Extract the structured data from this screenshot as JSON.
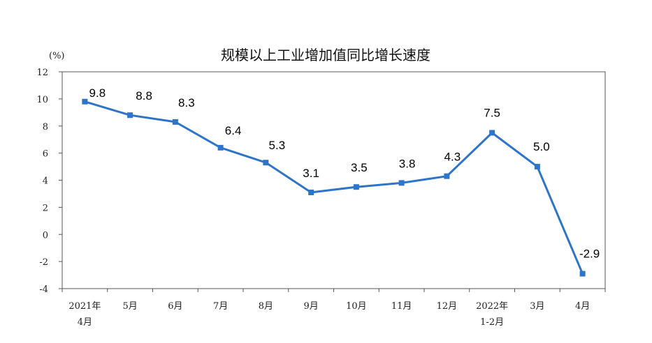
{
  "chart_data": {
    "type": "line",
    "title": "规模以上工业增加值同比增长速度",
    "unit_label": "(%)",
    "ylim": [
      -4,
      12
    ],
    "yticks": [
      "12",
      "10",
      "8",
      "6",
      "4",
      "2",
      "0",
      "-2",
      "-4"
    ],
    "categories": [
      [
        "2021年",
        "4月"
      ],
      [
        "5月"
      ],
      [
        "6月"
      ],
      [
        "7月"
      ],
      [
        "8月"
      ],
      [
        "9月"
      ],
      [
        "10月"
      ],
      [
        "11月"
      ],
      [
        "12月"
      ],
      [
        "2022年",
        "1-2月"
      ],
      [
        "3月"
      ],
      [
        "4月"
      ]
    ],
    "series": [
      {
        "values": [
          9.8,
          8.8,
          8.3,
          6.4,
          5.3,
          3.1,
          3.5,
          3.8,
          4.3,
          7.5,
          5.0,
          -2.9
        ],
        "labels": [
          "9.8",
          "8.8",
          "8.3",
          "6.4",
          "5.3",
          "3.1",
          "3.5",
          "3.8",
          "4.3",
          "7.5",
          "5.0",
          "-2.9"
        ],
        "color": "#2e75c9"
      }
    ],
    "grid": false,
    "legend": "none"
  }
}
